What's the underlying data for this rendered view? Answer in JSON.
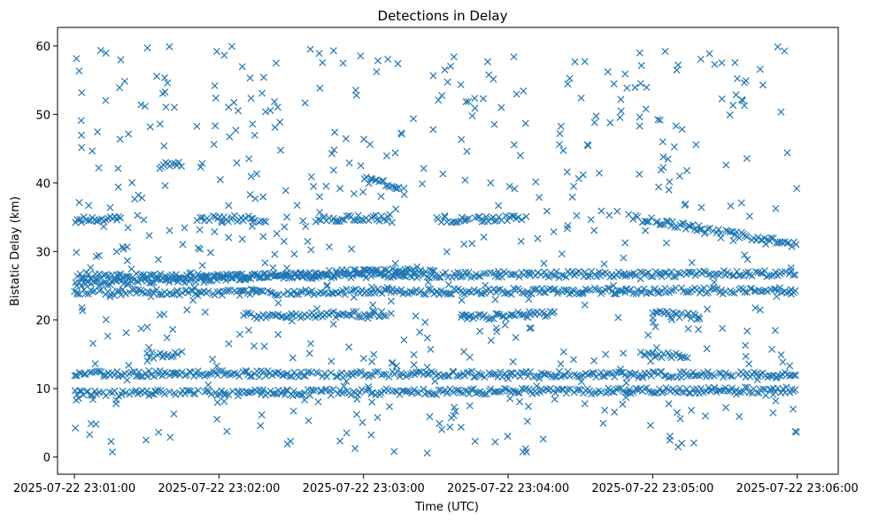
{
  "chart_data": {
    "type": "scatter",
    "title": "Detections in Delay",
    "xlabel": "Time (UTC)",
    "ylabel": "Bistatic Delay (km)",
    "x_tick_labels": [
      "2025-07-22 23:01:00",
      "2025-07-22 23:02:00",
      "2025-07-22 23:03:00",
      "2025-07-22 23:04:00",
      "2025-07-22 23:05:00",
      "2025-07-22 23:06:00"
    ],
    "y_tick_labels": [
      "0",
      "10",
      "20",
      "30",
      "40",
      "50",
      "60"
    ],
    "xlim": [
      "2025-07-22 23:00:53",
      "2025-07-22 23:06:17"
    ],
    "ylim": [
      -2.5,
      62.7
    ],
    "marker": "x",
    "color": "#1f77b4",
    "grid": false,
    "tracks": [
      {
        "t_start": "23:01:00",
        "t_end": "23:06:00",
        "delay_start_km": 24.0,
        "delay_end_km": 24.3
      },
      {
        "t_start": "23:01:00",
        "t_end": "23:06:00",
        "delay_start_km": 26.3,
        "delay_end_km": 26.8
      },
      {
        "t_start": "23:01:00",
        "t_end": "23:03:30",
        "delay_start_km": 25.2,
        "delay_end_km": 27.5
      },
      {
        "t_start": "23:01:00",
        "t_end": "23:06:00",
        "delay_start_km": 12.2,
        "delay_end_km": 12.0
      },
      {
        "t_start": "23:01:00",
        "t_end": "23:06:00",
        "delay_start_km": 9.3,
        "delay_end_km": 9.8
      },
      {
        "t_start": "23:01:00",
        "t_end": "23:01:20",
        "delay_start_km": 34.6,
        "delay_end_km": 34.8
      },
      {
        "t_start": "23:01:50",
        "t_end": "23:02:20",
        "delay_start_km": 34.9,
        "delay_end_km": 34.7
      },
      {
        "t_start": "23:02:40",
        "t_end": "23:03:10",
        "delay_start_km": 34.7,
        "delay_end_km": 34.9
      },
      {
        "t_start": "23:03:30",
        "t_end": "23:04:05",
        "delay_start_km": 34.6,
        "delay_end_km": 34.9
      },
      {
        "t_start": "23:04:50",
        "t_end": "23:06:00",
        "delay_start_km": 35.0,
        "delay_end_km": 31.0
      },
      {
        "t_start": "23:02:10",
        "t_end": "23:03:10",
        "delay_start_km": 20.6,
        "delay_end_km": 20.9
      },
      {
        "t_start": "23:03:40",
        "t_end": "23:04:20",
        "delay_start_km": 20.4,
        "delay_end_km": 20.9
      },
      {
        "t_start": "23:05:00",
        "t_end": "23:05:20",
        "delay_start_km": 21.0,
        "delay_end_km": 20.5
      },
      {
        "t_start": "23:03:00",
        "t_end": "23:03:15",
        "delay_start_km": 40.5,
        "delay_end_km": 39.5
      },
      {
        "t_start": "23:01:35",
        "t_end": "23:01:45",
        "delay_start_km": 42.5,
        "delay_end_km": 42.8
      },
      {
        "t_start": "23:01:30",
        "t_end": "23:01:45",
        "delay_start_km": 14.8,
        "delay_end_km": 15.0
      },
      {
        "t_start": "23:04:55",
        "t_end": "23:05:15",
        "delay_start_km": 15.0,
        "delay_end_km": 14.9
      }
    ],
    "scatter_count": 620,
    "scatter_delay_range_km": [
      0.5,
      60.0
    ]
  }
}
